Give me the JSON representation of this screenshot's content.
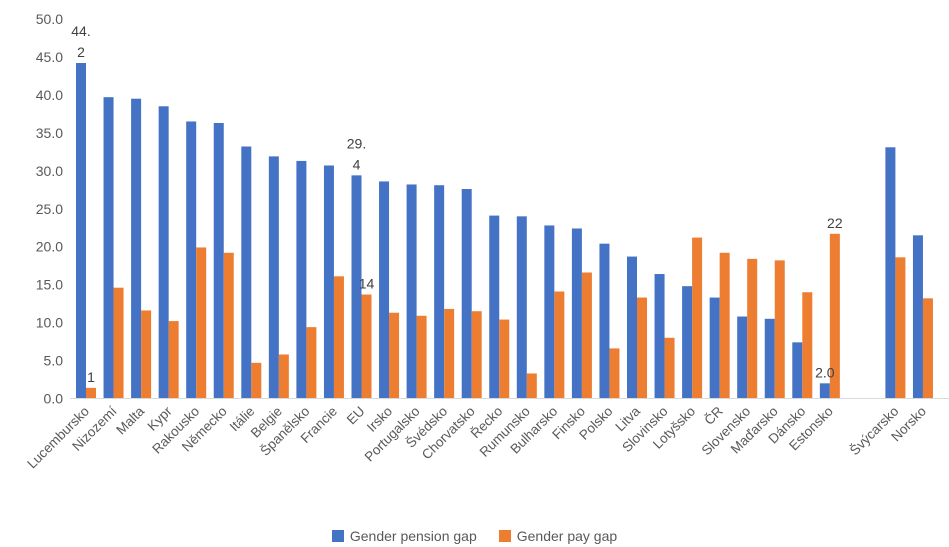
{
  "chart_data": {
    "type": "bar",
    "categories": [
      "Lucembursko",
      "Nizozemí",
      "Malta",
      "Kypr",
      "Rakousko",
      "Německo",
      "Itálie",
      "Belgie",
      "Španělsko",
      "Francie",
      "EU",
      "Irsko",
      "Portugalsko",
      "Švédsko",
      "Chorvatsko",
      "Řecko",
      "Rumunsko",
      "Bulharsko",
      "Finsko",
      "Polsko",
      "Litva",
      "Slovinsko",
      "Lotyšsko",
      "ČR",
      "Slovensko",
      "Maďarsko",
      "Dánsko",
      "Estonsko",
      "Švýcarsko",
      "Norsko"
    ],
    "series": [
      {
        "name": "Gender pension gap",
        "color": "#4472C4",
        "values": [
          44.2,
          39.7,
          39.5,
          38.5,
          36.5,
          36.3,
          33.2,
          31.9,
          31.3,
          30.7,
          29.4,
          28.6,
          28.2,
          28.1,
          27.6,
          24.1,
          24.0,
          22.8,
          22.4,
          20.4,
          18.7,
          16.4,
          14.8,
          13.3,
          10.8,
          10.5,
          7.4,
          2.0,
          33.1,
          21.5
        ]
      },
      {
        "name": "Gender pay gap",
        "color": "#ED7D31",
        "values": [
          1.4,
          14.6,
          11.6,
          10.2,
          19.9,
          19.2,
          4.7,
          5.8,
          9.4,
          16.1,
          13.7,
          11.3,
          10.9,
          11.8,
          11.5,
          10.4,
          3.3,
          14.1,
          16.6,
          6.6,
          13.3,
          8.0,
          21.2,
          19.2,
          18.4,
          18.2,
          14.0,
          21.7,
          18.6,
          13.2
        ]
      }
    ],
    "data_labels": [
      {
        "series": 0,
        "category": "Lucembursko",
        "text": [
          "44.",
          "2"
        ]
      },
      {
        "series": 1,
        "category": "Lucembursko",
        "text": [
          "1"
        ]
      },
      {
        "series": 0,
        "category": "EU",
        "text": [
          "29.",
          "4"
        ]
      },
      {
        "series": 1,
        "category": "EU",
        "text": [
          "14"
        ]
      },
      {
        "series": 0,
        "category": "Estonsko",
        "text": [
          "2.0"
        ]
      },
      {
        "series": 1,
        "category": "Estonsko",
        "text": [
          "22"
        ]
      }
    ],
    "yticks": [
      "0.0",
      "5.0",
      "10.0",
      "15.0",
      "20.0",
      "25.0",
      "30.0",
      "35.0",
      "40.0",
      "45.0",
      "50.0"
    ],
    "ylim": [
      0,
      50
    ],
    "grid": false,
    "legend_position": "bottom"
  }
}
